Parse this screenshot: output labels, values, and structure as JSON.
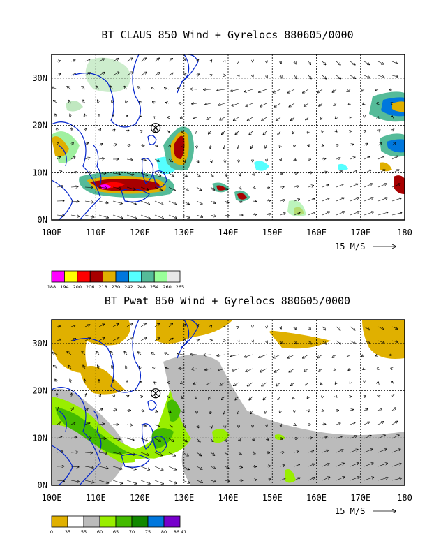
{
  "chart_data": [
    {
      "type": "heatmap",
      "title": "BT CLAUS 850 Wind + Gyrelocs 880605/0000",
      "x_ticks": [
        "100E",
        "110E",
        "120E",
        "130E",
        "140E",
        "150E",
        "160E",
        "170E",
        "180"
      ],
      "y_ticks": [
        "0N",
        "10N",
        "20N",
        "30N"
      ],
      "xlim": [
        100,
        180
      ],
      "ylim": [
        0,
        35
      ],
      "grid": true,
      "vector_reference": "15 M/S",
      "gyre_marker": {
        "lon": 123.5,
        "lat": 20.2
      },
      "colorbar": {
        "labels": [
          "188",
          "194",
          "200",
          "206",
          "218",
          "230",
          "242",
          "248",
          "254",
          "260",
          "265"
        ],
        "colors": [
          "#ff00ff",
          "#ffff00",
          "#ff0000",
          "#a80000",
          "#e0b000",
          "#0077dd",
          "#55ffff",
          "#55bb99",
          "#99ff99",
          "#e8e8e8"
        ]
      }
    },
    {
      "type": "heatmap",
      "title": "BT Pwat 850 Wind + Gyrelocs 880605/0000",
      "x_ticks": [
        "100E",
        "110E",
        "120E",
        "130E",
        "140E",
        "150E",
        "160E",
        "170E",
        "180"
      ],
      "y_ticks": [
        "0N",
        "10N",
        "20N",
        "30N"
      ],
      "xlim": [
        100,
        180
      ],
      "ylim": [
        0,
        35
      ],
      "grid": true,
      "vector_reference": "15 M/S",
      "gyre_marker": {
        "lon": 123.5,
        "lat": 20.2
      },
      "colorbar": {
        "labels": [
          "0",
          "35",
          "55",
          "60",
          "65",
          "70",
          "75",
          "80",
          "86.41"
        ],
        "colors": [
          "#e0b000",
          "#ffffff",
          "#bbbbbb",
          "#99ee00",
          "#44bb00",
          "#118800",
          "#0077dd",
          "#7700cc"
        ]
      }
    }
  ]
}
